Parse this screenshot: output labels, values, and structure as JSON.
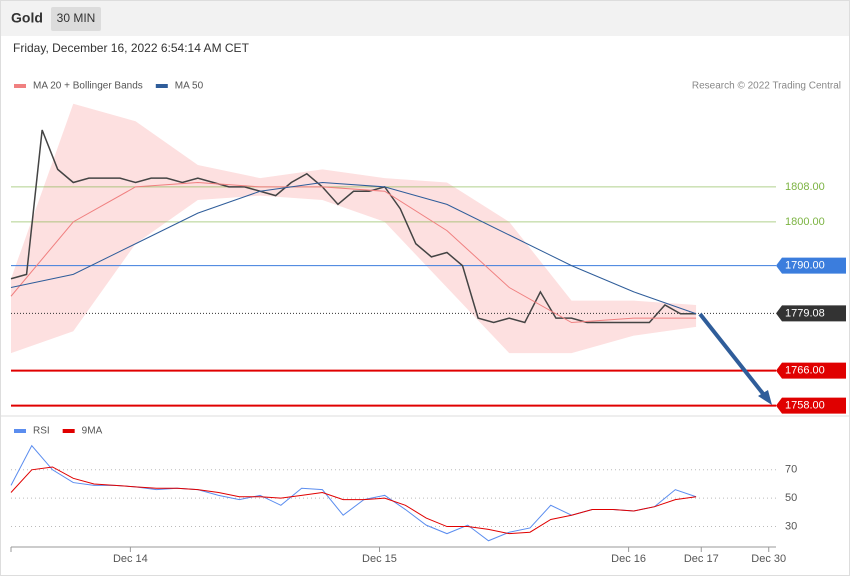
{
  "header": {
    "title": "Gold",
    "interval": "30 MIN",
    "date": "Friday, December 16, 2022 6:54:14 AM CET"
  },
  "chart_data": [
    {
      "type": "line",
      "credit": "Research © 2022 Trading Central",
      "xlim": [
        0,
        147.4
      ],
      "ylim": [
        1757,
        1829
      ],
      "series": [
        {
          "color": "#444444",
          "x": [
            0,
            3,
            6,
            9,
            12,
            15,
            18,
            21,
            24,
            27,
            30,
            33,
            36,
            39,
            42,
            45,
            48,
            51,
            54,
            57,
            60,
            63,
            66,
            69,
            72,
            75,
            78,
            81,
            84,
            87,
            90,
            93,
            96,
            99,
            102,
            105,
            108,
            111,
            114,
            117,
            120,
            123,
            126,
            129,
            132
          ],
          "values": [
            1787,
            1788,
            1821,
            1812,
            1809,
            1810,
            1810,
            1810,
            1809,
            1810,
            1810,
            1809,
            1810,
            1809,
            1808,
            1808,
            1807,
            1806,
            1809,
            1811,
            1808,
            1804,
            1807,
            1807,
            1808,
            1803,
            1795,
            1792,
            1793,
            1790,
            1778,
            1777,
            1778,
            1777,
            1784,
            1778,
            1778,
            1777,
            1777,
            1777,
            1777,
            1777,
            1781,
            1779,
            1779
          ]
        },
        {
          "name": "MA 20 + Bollinger Bands",
          "color": "#f08080",
          "band_color": "#fde0e0",
          "x": [
            0,
            12,
            24,
            36,
            48,
            60,
            72,
            84,
            96,
            108,
            120,
            132
          ],
          "values": [
            1783,
            1800,
            1808,
            1809,
            1808,
            1808,
            1807,
            1798,
            1785,
            1777,
            1778,
            1778
          ],
          "band_upper": [
            1787,
            1827,
            1823,
            1813,
            1810,
            1812,
            1810,
            1809,
            1800,
            1782,
            1782,
            1781
          ],
          "band_lower": [
            1770,
            1775,
            1795,
            1805,
            1806,
            1805,
            1800,
            1785,
            1770,
            1770,
            1774,
            1776
          ]
        },
        {
          "name": "MA 50",
          "color": "#2f5d9a",
          "x": [
            0,
            12,
            24,
            36,
            48,
            60,
            72,
            84,
            96,
            108,
            120,
            132
          ],
          "values": [
            1785,
            1788,
            1795,
            1802,
            1807,
            1809,
            1808,
            1804,
            1797,
            1790,
            1784,
            1779
          ]
        }
      ],
      "levels": [
        {
          "value": 1808,
          "label": "1808.00",
          "color": "#7cb342",
          "line": "solid",
          "tag": false
        },
        {
          "value": 1800,
          "label": "1800.00",
          "color": "#7cb342",
          "line": "solid",
          "tag": false
        },
        {
          "value": 1790,
          "label": "1790.00",
          "color": "#3b7ddd",
          "line": "solid",
          "tag": true
        },
        {
          "value": 1779.08,
          "label": "1779.08",
          "color": "#333333",
          "line": "dotted",
          "tag": true
        },
        {
          "value": 1766,
          "label": "1766.00",
          "color": "#e00000",
          "line": "solid",
          "tag": true
        },
        {
          "value": 1758,
          "label": "1758.00",
          "color": "#e00000",
          "line": "solid",
          "tag": true
        }
      ]
    },
    {
      "type": "line",
      "xlim": [
        0,
        147.4
      ],
      "ylim": [
        17,
        91
      ],
      "xticks": [
        {
          "value": 23,
          "label": "Dec 14"
        },
        {
          "value": 71,
          "label": "Dec 15"
        },
        {
          "value": 119,
          "label": "Dec 16"
        },
        {
          "value": 133,
          "label": "Dec 17"
        },
        {
          "value": 146,
          "label": "Dec 30"
        }
      ],
      "yticks": [
        30,
        50,
        70
      ],
      "series": [
        {
          "name": "RSI",
          "color": "#5b8def",
          "x": [
            0,
            4,
            8,
            12,
            16,
            20,
            24,
            28,
            32,
            36,
            40,
            44,
            48,
            52,
            56,
            60,
            64,
            68,
            72,
            76,
            80,
            84,
            88,
            92,
            96,
            100,
            104,
            108,
            112,
            116,
            120,
            124,
            128,
            132
          ],
          "values": [
            59,
            87,
            70,
            61,
            59,
            59,
            58,
            56,
            57,
            56,
            52,
            49,
            52,
            45,
            57,
            56,
            38,
            49,
            52,
            42,
            31,
            25,
            31,
            20,
            26,
            29,
            45,
            38,
            42,
            42,
            41,
            44,
            56,
            51
          ]
        },
        {
          "name": "9MA",
          "color": "#e00000",
          "x": [
            0,
            4,
            8,
            12,
            16,
            20,
            24,
            28,
            32,
            36,
            40,
            44,
            48,
            52,
            56,
            60,
            64,
            68,
            72,
            76,
            80,
            84,
            88,
            92,
            96,
            100,
            104,
            108,
            112,
            116,
            120,
            124,
            128,
            132
          ],
          "values": [
            54,
            70,
            72,
            64,
            60,
            59,
            58,
            57,
            57,
            56,
            54,
            51,
            51,
            50,
            52,
            54,
            49,
            49,
            50,
            45,
            36,
            30,
            30,
            28,
            25,
            26,
            35,
            38,
            42,
            42,
            41,
            44,
            49,
            51
          ]
        }
      ]
    }
  ]
}
